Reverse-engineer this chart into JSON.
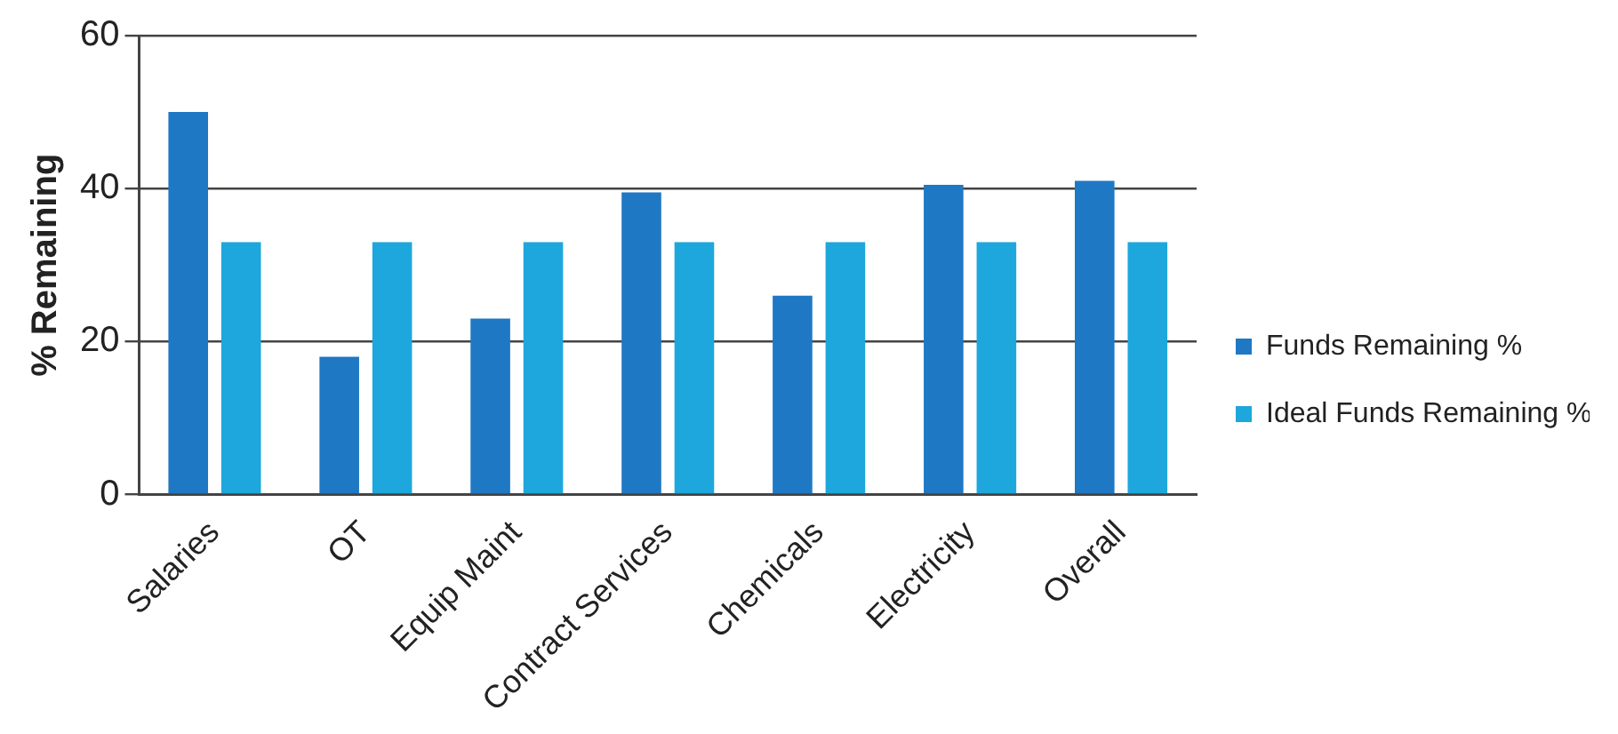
{
  "chart_data": {
    "type": "bar",
    "ylabel": "% Remaining",
    "categories": [
      "Salaries",
      "OT",
      "Equip Maint",
      "Contract Services",
      "Chemicals",
      "Electricity",
      "Overall"
    ],
    "series": [
      {
        "name": "Funds Remaining %",
        "color": "#1f78c4",
        "values": [
          50,
          18,
          23,
          39.5,
          26,
          40.5,
          41
        ]
      },
      {
        "name": "Ideal Funds Remaining %",
        "color": "#1ea7dc",
        "values": [
          33,
          33,
          33,
          33,
          33,
          33,
          33
        ]
      }
    ],
    "ylim": [
      0,
      60
    ],
    "yticks": [
      0,
      20,
      40,
      60
    ],
    "grid": "y",
    "legend": "right"
  }
}
